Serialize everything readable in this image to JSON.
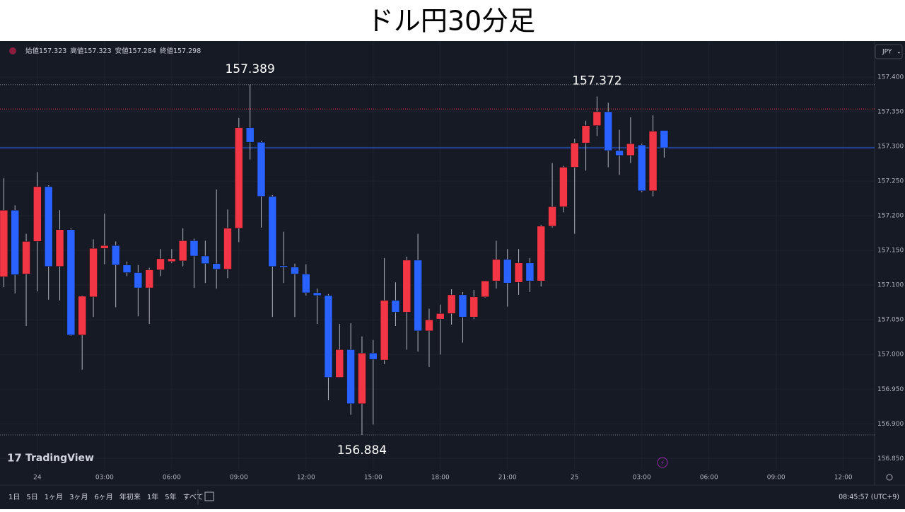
{
  "chart_data": {
    "type": "candlestick",
    "title": "ドル円30分足",
    "x": [
      -1.5,
      -1,
      -0.5,
      0,
      0.5,
      1,
      1.5,
      2,
      2.5,
      3,
      3.5,
      4,
      4.5,
      5,
      5.5,
      6,
      6.5,
      7,
      7.5,
      8,
      8.5,
      9,
      9.5,
      10,
      10.5,
      11,
      11.5,
      12,
      12.5,
      13,
      13.5,
      14,
      14.5,
      15,
      15.5,
      16,
      16.5,
      17,
      17.5,
      18,
      18.5,
      19,
      19.5,
      20,
      20.5,
      21,
      21.5,
      22,
      22.5,
      23,
      23.5,
      24,
      24.5,
      25,
      25.5,
      26,
      26.5,
      27,
      27.5,
      28
    ],
    "open": [
      157.112,
      157.208,
      157.116,
      157.163,
      157.242,
      157.127,
      157.18,
      157.028,
      157.083,
      157.153,
      157.157,
      157.129,
      157.118,
      157.096,
      157.122,
      157.134,
      157.135,
      157.164,
      157.142,
      157.131,
      157.123,
      157.182,
      157.327,
      157.306,
      157.228,
      157.128,
      157.126,
      157.116,
      157.089,
      157.085,
      156.967,
      157.007,
      156.929,
      157.002,
      156.992,
      157.078,
      157.061,
      157.136,
      157.034,
      157.051,
      157.059,
      157.086,
      157.054,
      157.083,
      157.106,
      157.137,
      157.104,
      157.132,
      157.106,
      157.185,
      157.213,
      157.27,
      157.305,
      157.33,
      157.35,
      157.294,
      157.287,
      157.302,
      157.236,
      157.323
    ],
    "high": [
      157.254,
      157.215,
      157.174,
      157.263,
      157.244,
      157.208,
      157.182,
      157.085,
      157.166,
      157.203,
      157.163,
      157.134,
      157.129,
      157.125,
      157.152,
      157.152,
      157.182,
      157.167,
      157.164,
      157.238,
      157.209,
      157.341,
      157.389,
      157.308,
      157.23,
      157.177,
      157.131,
      157.13,
      157.095,
      157.087,
      157.044,
      157.045,
      157.026,
      157.021,
      157.139,
      157.104,
      157.141,
      157.174,
      157.066,
      157.072,
      157.094,
      157.09,
      157.093,
      157.106,
      157.164,
      157.152,
      157.152,
      157.139,
      157.187,
      157.276,
      157.272,
      157.311,
      157.337,
      157.372,
      157.363,
      157.324,
      157.342,
      157.304,
      157.345,
      157.323
    ],
    "low": [
      157.097,
      157.088,
      157.041,
      157.091,
      157.079,
      157.078,
      157.027,
      156.978,
      157.054,
      157.13,
      157.068,
      157.113,
      157.055,
      157.044,
      157.113,
      157.132,
      157.127,
      157.096,
      157.103,
      157.095,
      157.11,
      157.162,
      157.281,
      157.183,
      157.054,
      157.103,
      157.054,
      157.085,
      157.044,
      156.934,
      156.967,
      156.913,
      156.884,
      156.899,
      156.986,
      157.041,
      157.007,
      157.004,
      156.982,
      157.0,
      157.043,
      157.017,
      157.051,
      157.082,
      157.095,
      157.069,
      157.086,
      157.09,
      157.098,
      157.183,
      157.205,
      157.174,
      157.265,
      157.315,
      157.27,
      157.259,
      157.276,
      157.234,
      157.228,
      157.284
    ],
    "close": [
      157.208,
      157.115,
      157.163,
      157.242,
      157.127,
      157.18,
      157.028,
      157.084,
      157.153,
      157.157,
      157.129,
      157.118,
      157.096,
      157.122,
      157.138,
      157.138,
      157.164,
      157.142,
      157.131,
      157.123,
      157.182,
      157.327,
      157.306,
      157.228,
      157.127,
      157.126,
      157.116,
      157.089,
      157.085,
      156.967,
      157.007,
      156.929,
      157.002,
      156.993,
      157.078,
      157.061,
      157.136,
      157.034,
      157.05,
      157.059,
      157.086,
      157.054,
      157.083,
      157.106,
      157.137,
      157.103,
      157.132,
      157.106,
      157.185,
      157.213,
      157.27,
      157.305,
      157.33,
      157.35,
      157.294,
      157.287,
      157.304,
      157.236,
      157.322,
      157.298
    ],
    "up_color": "#f23645",
    "down_color": "#2962ff",
    "xlim": [
      -1.67,
      37.4
    ],
    "xticks": [
      {
        "value": 0,
        "label": "24"
      },
      {
        "value": 3,
        "label": "03:00"
      },
      {
        "value": 6,
        "label": "06:00"
      },
      {
        "value": 9,
        "label": "09:00"
      },
      {
        "value": 12,
        "label": "12:00"
      },
      {
        "value": 15,
        "label": "15:00"
      },
      {
        "value": 18,
        "label": "18:00"
      },
      {
        "value": 21,
        "label": "21:00"
      },
      {
        "value": 24,
        "label": "25"
      },
      {
        "value": 27,
        "label": "03:00"
      },
      {
        "value": 30,
        "label": "06:00"
      },
      {
        "value": 33,
        "label": "09:00"
      },
      {
        "value": 36,
        "label": "12:00"
      }
    ],
    "ylim": [
      156.834,
      157.452
    ],
    "yticks": [
      {
        "value": 157.4,
        "label": "157.400"
      },
      {
        "value": 157.35,
        "label": "157.350"
      },
      {
        "value": 157.3,
        "label": "157.300"
      },
      {
        "value": 157.25,
        "label": "157.250"
      },
      {
        "value": 157.2,
        "label": "157.200"
      },
      {
        "value": 157.15,
        "label": "157.150"
      },
      {
        "value": 157.1,
        "label": "157.100"
      },
      {
        "value": 157.05,
        "label": "157.050"
      },
      {
        "value": 157,
        "label": "157.000"
      },
      {
        "value": 156.95,
        "label": "156.950"
      },
      {
        "value": 156.9,
        "label": "156.900"
      },
      {
        "value": 156.85,
        "label": "156.850"
      }
    ],
    "grid": true,
    "price_lines": [
      {
        "value": 157.389,
        "color": "#787b86",
        "dash": true
      },
      {
        "value": 157.354,
        "color": "#f23645",
        "dash": true
      },
      {
        "value": 157.298,
        "color": "#2962ff",
        "dash": false
      },
      {
        "value": 156.884,
        "color": "#787b86",
        "dash": true
      }
    ],
    "annotations": [
      {
        "x": 9.5,
        "value": 157.389,
        "offset": -1
      },
      {
        "x": 25,
        "value": 157.372,
        "offset": -1
      },
      {
        "x": 14.5,
        "value": 156.884,
        "offset": 1
      }
    ],
    "legend": [
      {
        "label": "始値",
        "value": 157.323
      },
      {
        "label": "高値",
        "value": 157.323
      },
      {
        "label": "安値",
        "value": 157.284
      },
      {
        "label": "終値",
        "value": 157.298
      }
    ],
    "currency": "JPY",
    "brand": "TradingView",
    "ranges": [
      "1日",
      "5日",
      "1ヶ月",
      "3ヶ月",
      "6ヶ月",
      "年初来",
      "1年",
      "5年",
      "すべて"
    ],
    "clock": "08:45:57 (UTC+9)"
  }
}
